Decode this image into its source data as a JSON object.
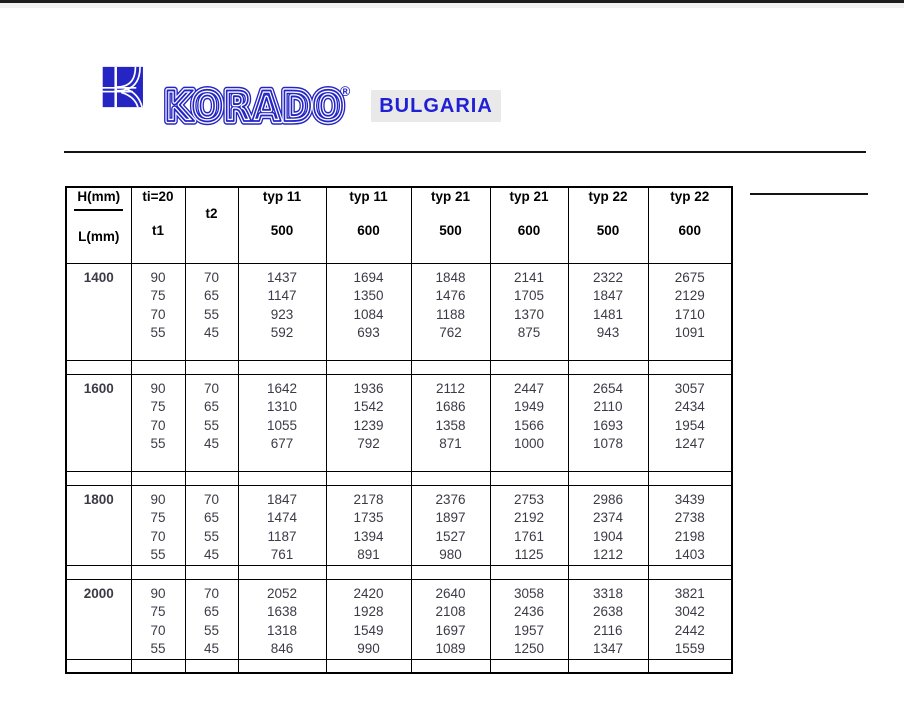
{
  "logo": {
    "brand": "KORADO",
    "registered": "®",
    "country_label": "BULGARIA"
  },
  "colors": {
    "logo_blue": "#2525c4",
    "bulgaria_text": "#1f1fd6",
    "bulgaria_bg": "#e9e9e9",
    "data_text": "#3b3b47",
    "border": "#000000"
  },
  "table": {
    "header": {
      "col_hl": {
        "top": "H(mm)",
        "bottom": "L(mm)"
      },
      "col_t1": {
        "top": "ti=20",
        "bottom": "t1"
      },
      "col_t2": {
        "top": "",
        "bottom": "t2"
      },
      "type_columns": [
        {
          "type": "typ 11",
          "height": "500"
        },
        {
          "type": "typ 11",
          "height": "600"
        },
        {
          "type": "typ 21",
          "height": "500"
        },
        {
          "type": "typ 21",
          "height": "600"
        },
        {
          "type": "typ 22",
          "height": "500"
        },
        {
          "type": "typ 22",
          "height": "600"
        }
      ]
    },
    "blocks": [
      {
        "length": "1400",
        "t1": [
          "90",
          "75",
          "70",
          "55"
        ],
        "t2": [
          "70",
          "65",
          "55",
          "45"
        ],
        "columns": [
          [
            "1437",
            "1147",
            "923",
            "592"
          ],
          [
            "1694",
            "1350",
            "1084",
            "693"
          ],
          [
            "1848",
            "1476",
            "1188",
            "762"
          ],
          [
            "2141",
            "1705",
            "1370",
            "875"
          ],
          [
            "2322",
            "1847",
            "1481",
            "943"
          ],
          [
            "2675",
            "2129",
            "1710",
            "1091"
          ]
        ]
      },
      {
        "length": "1600",
        "t1": [
          "90",
          "75",
          "70",
          "55"
        ],
        "t2": [
          "70",
          "65",
          "55",
          "45"
        ],
        "columns": [
          [
            "1642",
            "1310",
            "1055",
            "677"
          ],
          [
            "1936",
            "1542",
            "1239",
            "792"
          ],
          [
            "2112",
            "1686",
            "1358",
            "871"
          ],
          [
            "2447",
            "1949",
            "1566",
            "1000"
          ],
          [
            "2654",
            "2110",
            "1693",
            "1078"
          ],
          [
            "3057",
            "2434",
            "1954",
            "1247"
          ]
        ]
      },
      {
        "length": "1800",
        "t1": [
          "90",
          "75",
          "70",
          "55"
        ],
        "t2": [
          "70",
          "65",
          "55",
          "45"
        ],
        "columns": [
          [
            "1847",
            "1474",
            "1187",
            "761"
          ],
          [
            "2178",
            "1735",
            "1394",
            "891"
          ],
          [
            "2376",
            "1897",
            "1527",
            "980"
          ],
          [
            "2753",
            "2192",
            "1761",
            "1125"
          ],
          [
            "2986",
            "2374",
            "1904",
            "1212"
          ],
          [
            "3439",
            "2738",
            "2198",
            "1403"
          ]
        ]
      },
      {
        "length": "2000",
        "t1": [
          "90",
          "75",
          "70",
          "55"
        ],
        "t2": [
          "70",
          "65",
          "55",
          "45"
        ],
        "columns": [
          [
            "2052",
            "1638",
            "1318",
            "846"
          ],
          [
            "2420",
            "1928",
            "1549",
            "990"
          ],
          [
            "2640",
            "2108",
            "1697",
            "1089"
          ],
          [
            "3058",
            "2436",
            "1957",
            "1250"
          ],
          [
            "3318",
            "2638",
            "2116",
            "1347"
          ],
          [
            "3821",
            "3042",
            "2442",
            "1559"
          ]
        ]
      }
    ]
  }
}
